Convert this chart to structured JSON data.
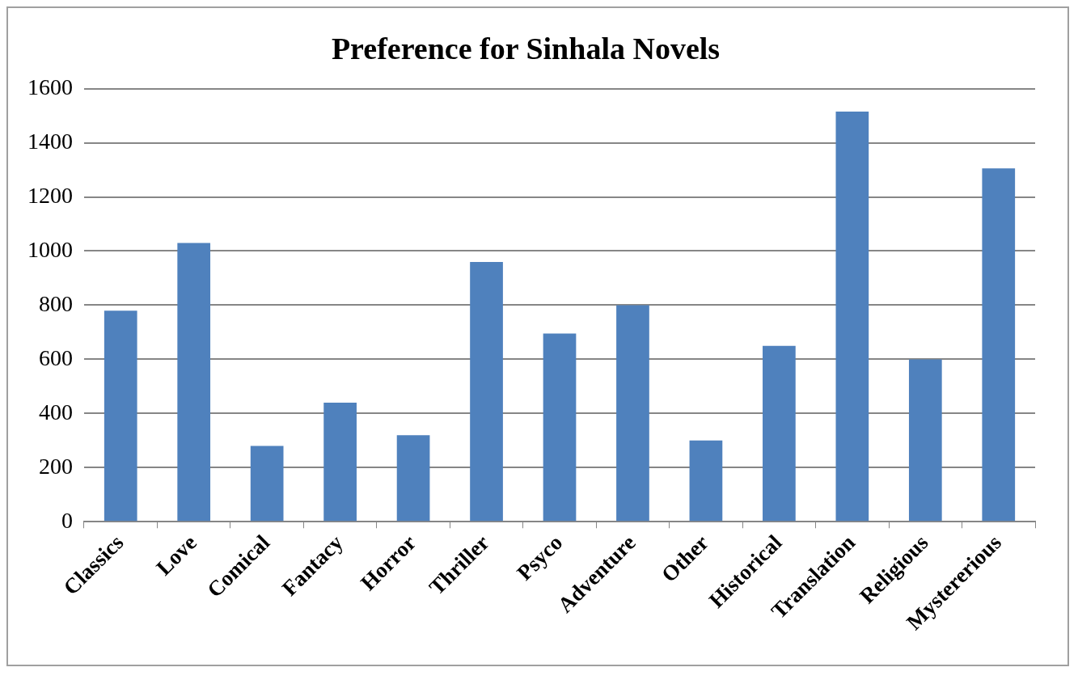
{
  "chart_data": {
    "type": "bar",
    "title": "Preference for Sinhala Novels",
    "categories": [
      "Classics",
      "Love",
      "Comical",
      "Fantacy",
      "Horror",
      "Thriller",
      "Psyco",
      "Adventure",
      "Other",
      "Historical",
      "Translation",
      "Religious",
      "Mystererious"
    ],
    "values": [
      780,
      1030,
      280,
      440,
      320,
      960,
      695,
      800,
      300,
      650,
      1515,
      600,
      1305
    ],
    "color": "#4f81bd",
    "ylim": [
      0,
      1600
    ],
    "yticks": [
      0,
      200,
      400,
      600,
      800,
      1000,
      1200,
      1400,
      1600
    ],
    "grid": "y"
  }
}
